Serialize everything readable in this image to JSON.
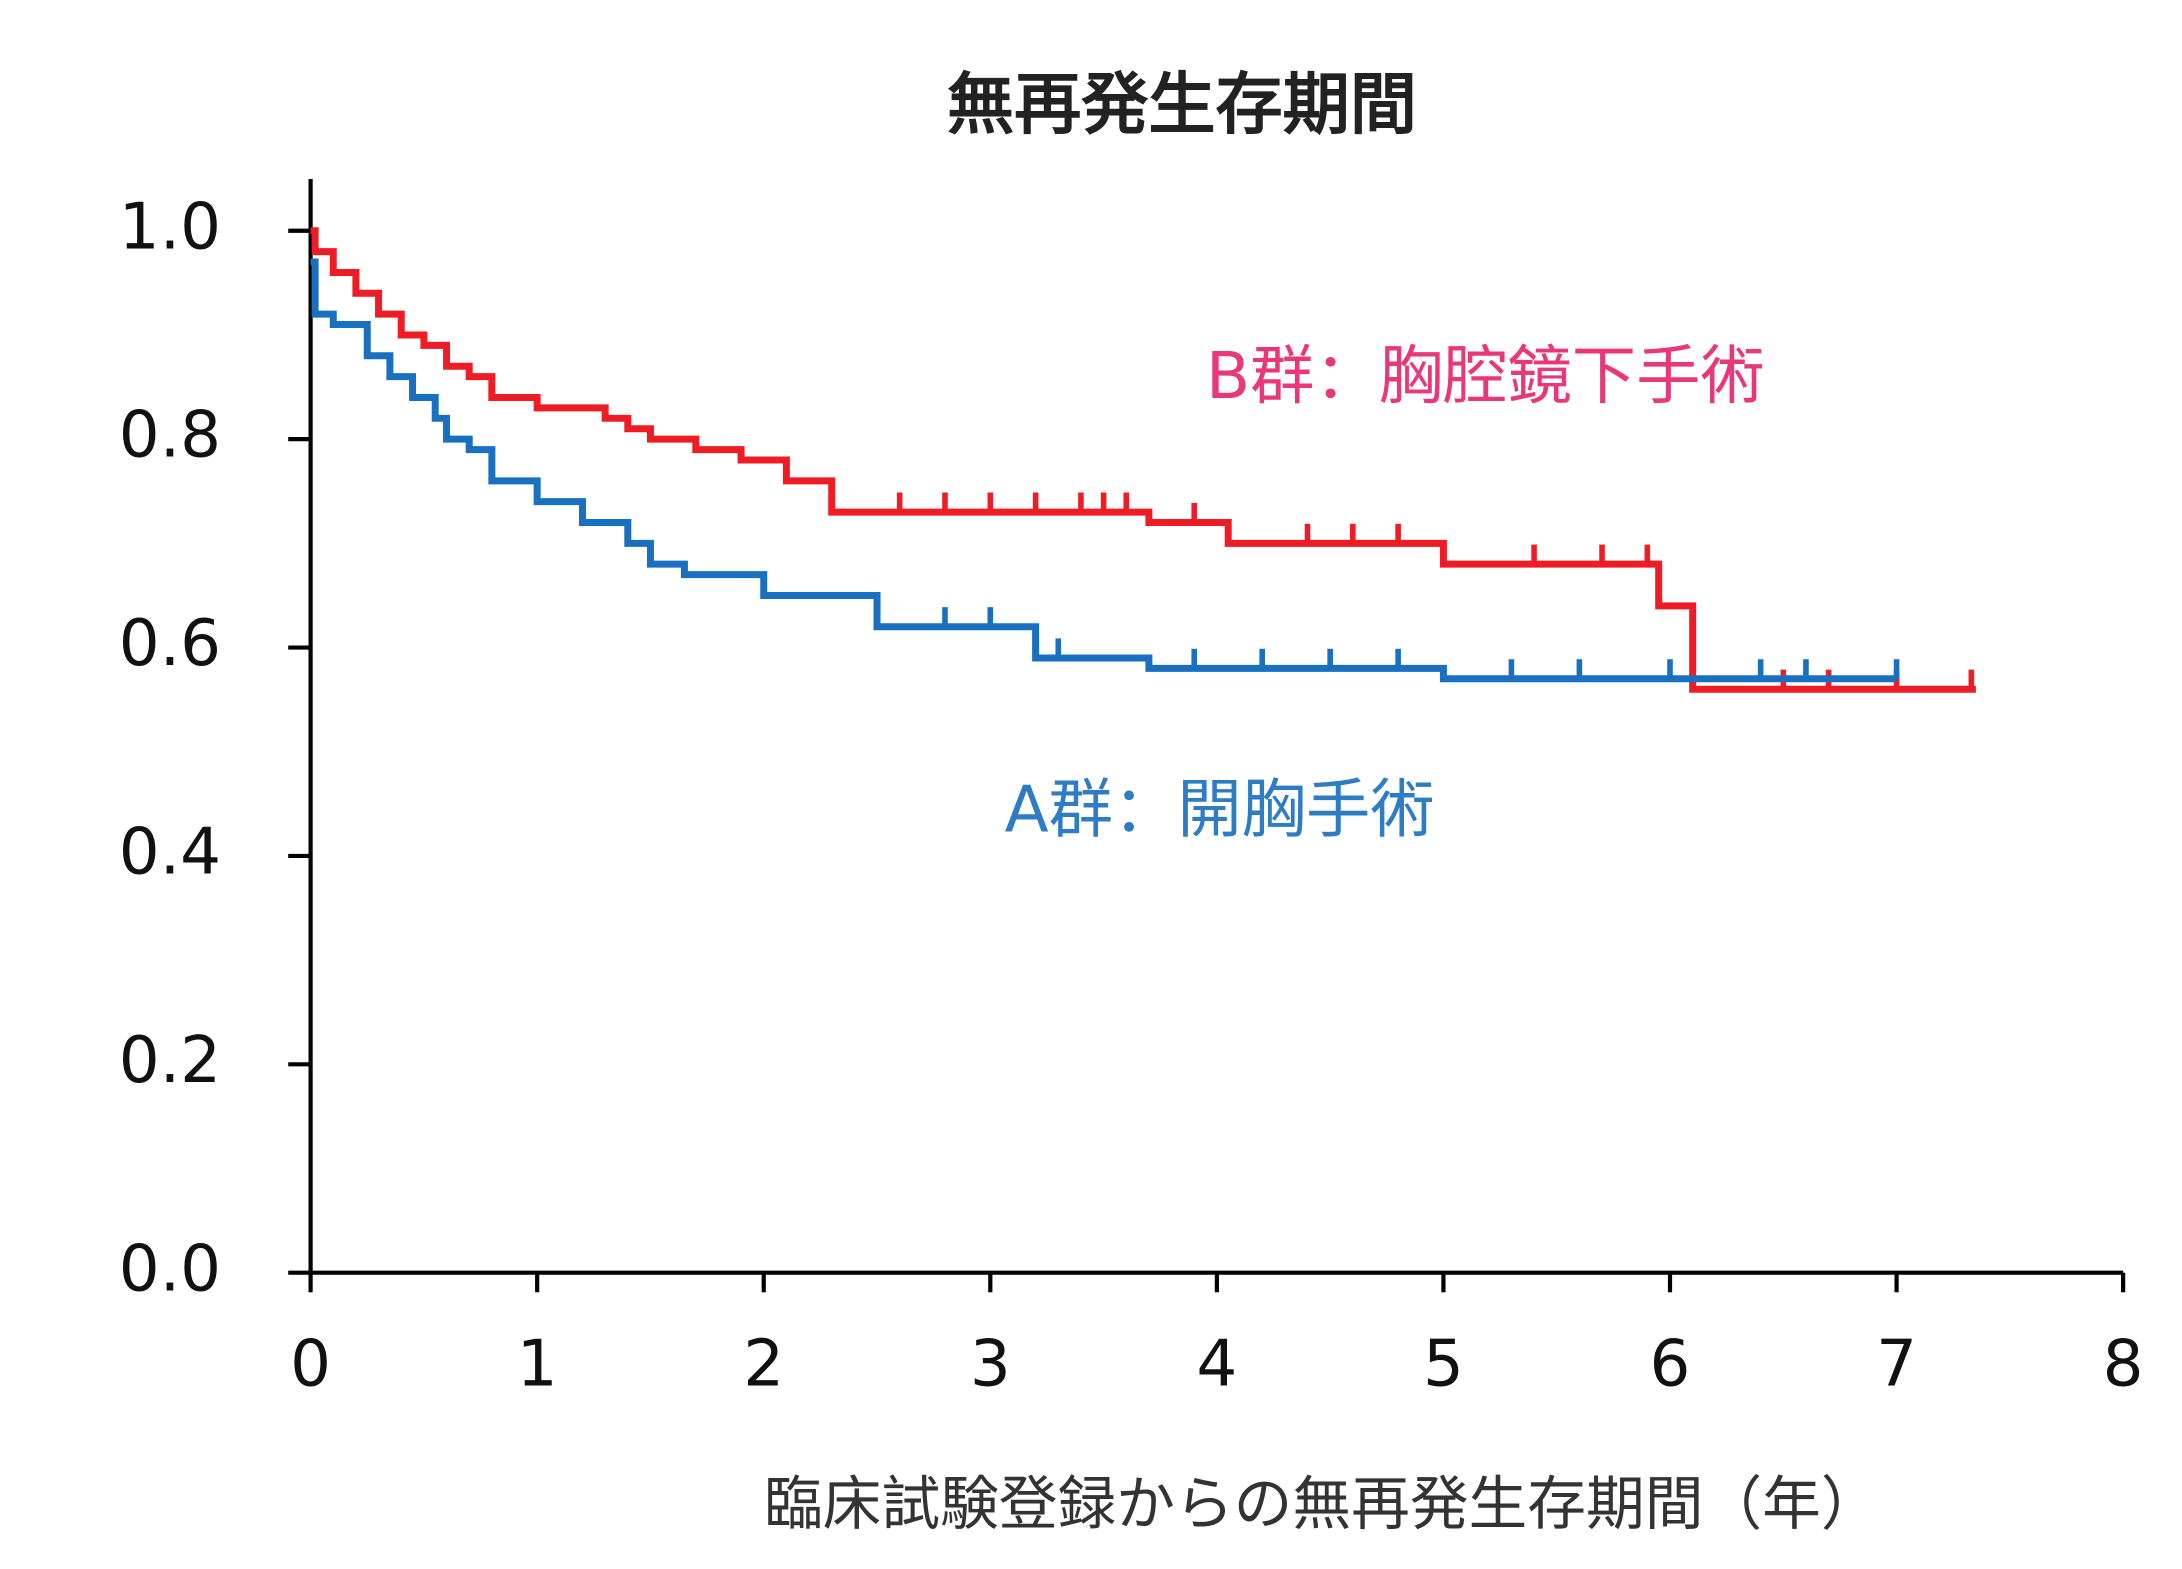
{
  "chart_data": {
    "type": "km",
    "title": "無再発生存期間",
    "x_label": "臨床試験登録からの無再発生存期間（年）",
    "xlim": [
      0,
      8
    ],
    "xticks": [
      0,
      1,
      2,
      3,
      4,
      5,
      6,
      7,
      8
    ],
    "ylim": [
      0,
      1
    ],
    "yticks": [
      {
        "value": 0,
        "label": "0.0"
      },
      {
        "value": 0.2,
        "label": "0.2"
      },
      {
        "value": 0.4,
        "label": "0.4"
      },
      {
        "value": 0.6,
        "label": "0.6"
      },
      {
        "value": 0.8,
        "label": "0.8"
      },
      {
        "value": 1,
        "label": "1.0"
      }
    ],
    "series": [
      {
        "name": "B群：胸腔鏡下手術",
        "color": "#ee1c25",
        "label_color": "#e8387a",
        "x": [
          0,
          0.02,
          0.1,
          0.2,
          0.3,
          0.4,
          0.5,
          0.6,
          0.7,
          0.8,
          1.0,
          1.3,
          1.4,
          1.5,
          1.7,
          1.9,
          2.1,
          2.3,
          3.7,
          4.05,
          5.0,
          5.95,
          6.1,
          7.35
        ],
        "values": [
          1.0,
          0.98,
          0.96,
          0.94,
          0.92,
          0.9,
          0.89,
          0.87,
          0.86,
          0.84,
          0.83,
          0.82,
          0.81,
          0.8,
          0.79,
          0.78,
          0.76,
          0.73,
          0.72,
          0.7,
          0.68,
          0.64,
          0.56,
          0.56
        ],
        "censor_x": [
          2.6,
          2.8,
          3.0,
          3.2,
          3.4,
          3.5,
          3.6,
          3.9,
          4.4,
          4.6,
          4.8,
          5.4,
          5.7,
          5.9,
          6.5,
          6.7,
          7.0,
          7.33
        ]
      },
      {
        "name": "A群：開胸手術",
        "color": "#1a70c0",
        "label_color": "#2e7cc4",
        "x": [
          0,
          0.02,
          0.1,
          0.25,
          0.35,
          0.45,
          0.55,
          0.6,
          0.7,
          0.8,
          1.0,
          1.2,
          1.4,
          1.5,
          1.65,
          2.0,
          2.5,
          3.2,
          3.7,
          5.0,
          7.0
        ],
        "values": [
          0.97,
          0.92,
          0.91,
          0.88,
          0.86,
          0.84,
          0.82,
          0.8,
          0.79,
          0.76,
          0.74,
          0.72,
          0.7,
          0.68,
          0.67,
          0.65,
          0.62,
          0.59,
          0.58,
          0.57,
          0.57
        ],
        "censor_x": [
          2.8,
          3.0,
          3.3,
          3.9,
          4.2,
          4.5,
          4.8,
          5.3,
          5.6,
          6.0,
          6.4,
          6.6,
          7.0
        ]
      }
    ]
  }
}
